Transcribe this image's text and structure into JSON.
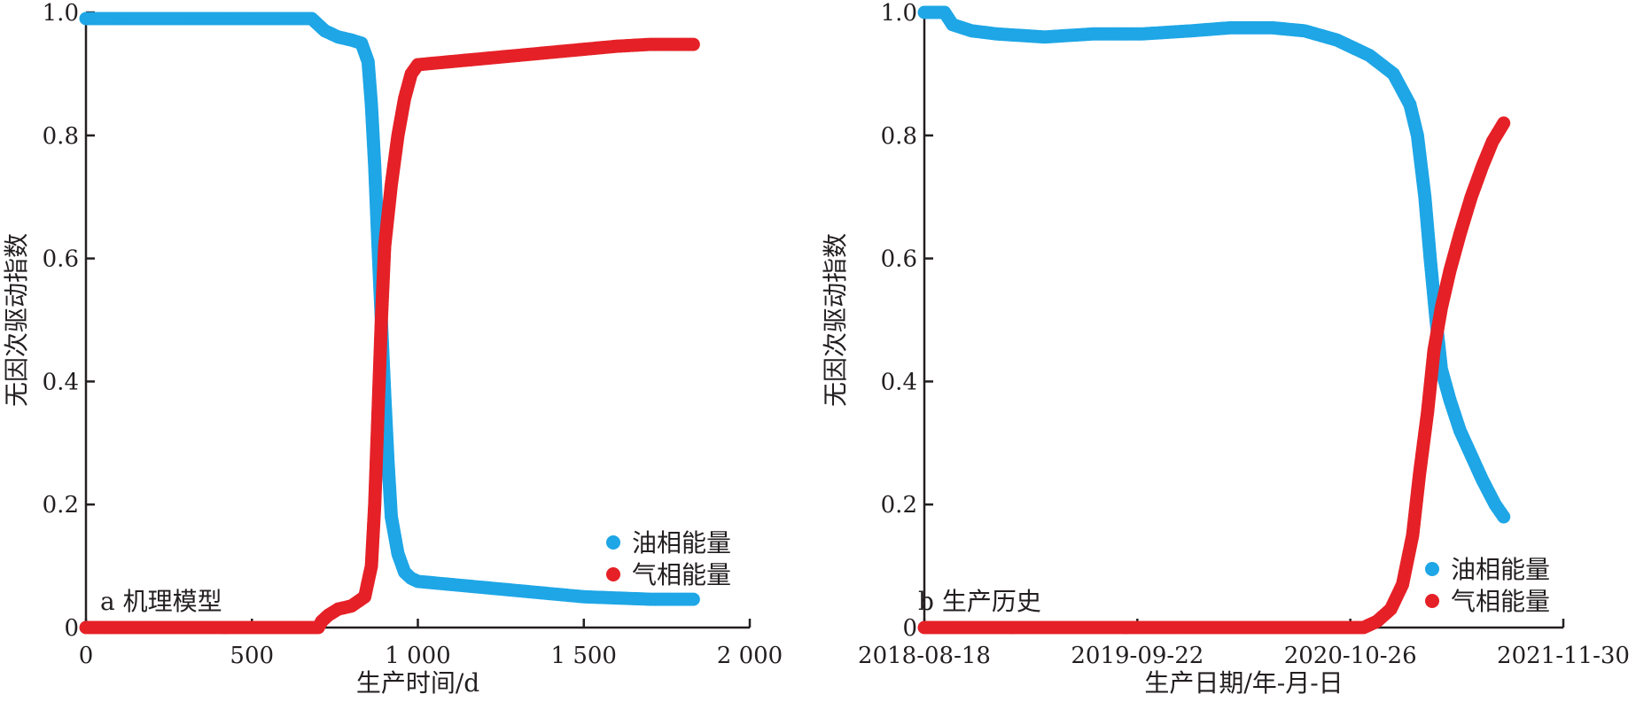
{
  "chart_data": [
    {
      "type": "scatter",
      "panel_label": "a 机理模型",
      "xlabel": "生产时间/d",
      "ylabel": "无因次驱动指数",
      "xlim": [
        0,
        2000
      ],
      "ylim": [
        0,
        1.0
      ],
      "x_ticks": [
        0,
        500,
        1000,
        1500,
        2000
      ],
      "x_tick_labels": [
        "0",
        "500",
        "1 000",
        "1 500",
        "2 000"
      ],
      "y_ticks": [
        0,
        0.2,
        0.4,
        0.6,
        0.8,
        1.0
      ],
      "y_tick_labels": [
        "0",
        "0.2",
        "0.4",
        "0.6",
        "0.8",
        "1.0"
      ],
      "legend_position": "bottom-right",
      "series": [
        {
          "name": "油相能量",
          "color": "#1ea6e6",
          "points": [
            [
              0,
              0.99
            ],
            [
              200,
              0.99
            ],
            [
              400,
              0.99
            ],
            [
              600,
              0.99
            ],
            [
              680,
              0.99
            ],
            [
              700,
              0.98
            ],
            [
              720,
              0.97
            ],
            [
              760,
              0.96
            ],
            [
              800,
              0.955
            ],
            [
              830,
              0.95
            ],
            [
              850,
              0.92
            ],
            [
              860,
              0.85
            ],
            [
              870,
              0.75
            ],
            [
              880,
              0.62
            ],
            [
              890,
              0.5
            ],
            [
              900,
              0.38
            ],
            [
              910,
              0.27
            ],
            [
              920,
              0.18
            ],
            [
              940,
              0.12
            ],
            [
              960,
              0.09
            ],
            [
              980,
              0.08
            ],
            [
              1000,
              0.075
            ],
            [
              1100,
              0.07
            ],
            [
              1200,
              0.065
            ],
            [
              1300,
              0.06
            ],
            [
              1400,
              0.055
            ],
            [
              1500,
              0.05
            ],
            [
              1600,
              0.048
            ],
            [
              1700,
              0.046
            ],
            [
              1830,
              0.046
            ]
          ]
        },
        {
          "name": "气相能量",
          "color": "#e52127",
          "points": [
            [
              0,
              0.0
            ],
            [
              200,
              0.0
            ],
            [
              400,
              0.0
            ],
            [
              600,
              0.0
            ],
            [
              700,
              0.0
            ],
            [
              710,
              0.01
            ],
            [
              730,
              0.02
            ],
            [
              760,
              0.03
            ],
            [
              800,
              0.035
            ],
            [
              840,
              0.05
            ],
            [
              860,
              0.1
            ],
            [
              870,
              0.2
            ],
            [
              880,
              0.35
            ],
            [
              890,
              0.5
            ],
            [
              900,
              0.62
            ],
            [
              920,
              0.72
            ],
            [
              940,
              0.8
            ],
            [
              960,
              0.86
            ],
            [
              980,
              0.9
            ],
            [
              1000,
              0.915
            ],
            [
              1100,
              0.92
            ],
            [
              1200,
              0.925
            ],
            [
              1300,
              0.93
            ],
            [
              1400,
              0.935
            ],
            [
              1500,
              0.94
            ],
            [
              1600,
              0.945
            ],
            [
              1700,
              0.948
            ],
            [
              1830,
              0.948
            ]
          ]
        }
      ]
    },
    {
      "type": "scatter",
      "panel_label": "b 生产历史",
      "xlabel": "生产日期/年-月-日",
      "ylabel": "无因次驱动指数",
      "xlim": [
        "2018-08-18",
        "2021-11-30"
      ],
      "ylim": [
        0,
        1.0
      ],
      "x_ticks": [
        "2018-08-18",
        "2019-09-22",
        "2020-10-26",
        "2021-11-30"
      ],
      "x_tick_labels": [
        "2018-08-18",
        "2019-09-22",
        "2020-10-26",
        "2021-11-30"
      ],
      "y_ticks": [
        0,
        0.2,
        0.4,
        0.6,
        0.8,
        1.0
      ],
      "y_tick_labels": [
        "0",
        "0.2",
        "0.4",
        "0.6",
        "0.8",
        "1.0"
      ],
      "legend_position": "bottom-right",
      "series": [
        {
          "name": "油相能量",
          "color": "#1ea6e6",
          "points": [
            [
              "2018-08-18",
              1.0
            ],
            [
              "2018-09-25",
              1.0
            ],
            [
              "2018-10-10",
              0.98
            ],
            [
              "2018-11-15",
              0.97
            ],
            [
              "2019-01-01",
              0.965
            ],
            [
              "2019-04-01",
              0.96
            ],
            [
              "2019-07-01",
              0.965
            ],
            [
              "2019-10-01",
              0.965
            ],
            [
              "2020-01-01",
              0.97
            ],
            [
              "2020-03-15",
              0.975
            ],
            [
              "2020-06-01",
              0.975
            ],
            [
              "2020-08-01",
              0.97
            ],
            [
              "2020-10-01",
              0.955
            ],
            [
              "2020-12-01",
              0.93
            ],
            [
              "2021-01-15",
              0.9
            ],
            [
              "2021-02-15",
              0.85
            ],
            [
              "2021-03-01",
              0.8
            ],
            [
              "2021-03-15",
              0.7
            ],
            [
              "2021-03-25",
              0.6
            ],
            [
              "2021-04-05",
              0.5
            ],
            [
              "2021-04-15",
              0.42
            ],
            [
              "2021-05-01",
              0.37
            ],
            [
              "2021-05-20",
              0.32
            ],
            [
              "2021-06-10",
              0.28
            ],
            [
              "2021-07-01",
              0.24
            ],
            [
              "2021-07-25",
              0.2
            ],
            [
              "2021-08-10",
              0.18
            ]
          ]
        },
        {
          "name": "气相能量",
          "color": "#e52127",
          "points": [
            [
              "2018-08-18",
              0.0
            ],
            [
              "2019-01-01",
              0.0
            ],
            [
              "2019-07-01",
              0.0
            ],
            [
              "2020-01-01",
              0.0
            ],
            [
              "2020-07-01",
              0.0
            ],
            [
              "2020-11-20",
              0.0
            ],
            [
              "2020-12-15",
              0.01
            ],
            [
              "2021-01-10",
              0.03
            ],
            [
              "2021-02-01",
              0.07
            ],
            [
              "2021-02-20",
              0.15
            ],
            [
              "2021-03-05",
              0.25
            ],
            [
              "2021-03-20",
              0.35
            ],
            [
              "2021-04-01",
              0.45
            ],
            [
              "2021-04-15",
              0.52
            ],
            [
              "2021-05-01",
              0.58
            ],
            [
              "2021-05-20",
              0.64
            ],
            [
              "2021-06-10",
              0.7
            ],
            [
              "2021-07-01",
              0.75
            ],
            [
              "2021-07-20",
              0.79
            ],
            [
              "2021-08-10",
              0.82
            ]
          ]
        }
      ]
    }
  ]
}
